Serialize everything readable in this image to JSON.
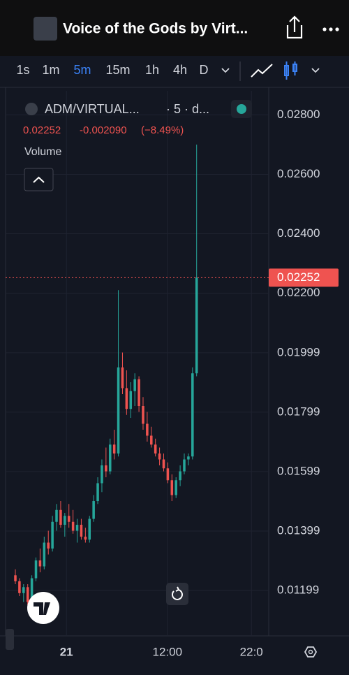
{
  "header": {
    "title": "Voice of the Gods by Virt..."
  },
  "toolbar": {
    "intervals": [
      "1s",
      "1m",
      "5m",
      "15m",
      "1h",
      "4h",
      "D"
    ],
    "active": 2,
    "active_color": "#3b82f6"
  },
  "chart": {
    "type": "candlestick",
    "symbol": "ADM/VIRTUAL...",
    "info": "· 5 · d...",
    "last": "0.02252",
    "change": "-0.002090",
    "change_pct": "(−8.49%)",
    "indicator": "Volume",
    "up_color": "#26a69a",
    "down_color": "#ef5350",
    "price_line": 0.02252,
    "ylim": [
      0.01046,
      0.02881
    ],
    "yticks": [
      {
        "value": 0.028,
        "label": "0.02800"
      },
      {
        "value": 0.026,
        "label": "0.02600"
      },
      {
        "value": 0.024,
        "label": "0.02400"
      },
      {
        "value": 0.022,
        "label": "0.02200"
      },
      {
        "value": 0.01999,
        "label": "0.01999"
      },
      {
        "value": 0.01799,
        "label": "0.01799"
      },
      {
        "value": 0.01599,
        "label": "0.01599"
      },
      {
        "value": 0.01399,
        "label": "0.01399"
      },
      {
        "value": 0.01199,
        "label": "0.01199"
      }
    ],
    "xlim": [
      0,
      61.5
    ],
    "xticks": [
      {
        "value": 12.4,
        "label": "21"
      },
      {
        "value": 36.9,
        "label": "12:00"
      },
      {
        "value": 57.3,
        "label": "22:0"
      }
    ],
    "candles": [
      [
        0.0125,
        0.0127,
        0.0122,
        0.0123
      ],
      [
        0.0123,
        0.0124,
        0.0118,
        0.0119
      ],
      [
        0.0119,
        0.0122,
        0.0116,
        0.0121
      ],
      [
        0.0121,
        0.0122,
        0.0115,
        0.0116
      ],
      [
        0.0116,
        0.0125,
        0.0115,
        0.0124
      ],
      [
        0.0124,
        0.0131,
        0.0123,
        0.013
      ],
      [
        0.013,
        0.0134,
        0.0126,
        0.0128
      ],
      [
        0.0128,
        0.0138,
        0.0127,
        0.0136
      ],
      [
        0.0136,
        0.014,
        0.0132,
        0.0134
      ],
      [
        0.0134,
        0.0145,
        0.0133,
        0.0143
      ],
      [
        0.0143,
        0.0149,
        0.014,
        0.0147
      ],
      [
        0.0147,
        0.015,
        0.0141,
        0.0142
      ],
      [
        0.0142,
        0.0146,
        0.0138,
        0.0145
      ],
      [
        0.0145,
        0.0149,
        0.0141,
        0.0143
      ],
      [
        0.0143,
        0.0147,
        0.0139,
        0.014
      ],
      [
        0.014,
        0.0144,
        0.0136,
        0.0142
      ],
      [
        0.0142,
        0.0144,
        0.0137,
        0.0138
      ],
      [
        0.0138,
        0.0141,
        0.0136,
        0.0137
      ],
      [
        0.0137,
        0.0145,
        0.0136,
        0.0144
      ],
      [
        0.0144,
        0.0152,
        0.0143,
        0.015
      ],
      [
        0.015,
        0.0158,
        0.0149,
        0.0156
      ],
      [
        0.0156,
        0.0164,
        0.0153,
        0.0162
      ],
      [
        0.0162,
        0.0168,
        0.0158,
        0.016
      ],
      [
        0.016,
        0.0171,
        0.0159,
        0.0169
      ],
      [
        0.0169,
        0.0174,
        0.0164,
        0.0166
      ],
      [
        0.0166,
        0.0221,
        0.0165,
        0.0195
      ],
      [
        0.0195,
        0.02,
        0.0186,
        0.0188
      ],
      [
        0.0188,
        0.0194,
        0.0179,
        0.0181
      ],
      [
        0.0181,
        0.019,
        0.0178,
        0.0187
      ],
      [
        0.0187,
        0.0193,
        0.0182,
        0.0191
      ],
      [
        0.0191,
        0.0192,
        0.018,
        0.0182
      ],
      [
        0.0182,
        0.0185,
        0.0174,
        0.0176
      ],
      [
        0.0176,
        0.018,
        0.017,
        0.0172
      ],
      [
        0.0172,
        0.0175,
        0.0168,
        0.0169
      ],
      [
        0.0169,
        0.0171,
        0.0165,
        0.0166
      ],
      [
        0.0166,
        0.0168,
        0.0162,
        0.0164
      ],
      [
        0.0164,
        0.0166,
        0.016,
        0.0161
      ],
      [
        0.0161,
        0.0163,
        0.0156,
        0.0157
      ],
      [
        0.0157,
        0.0159,
        0.015,
        0.0152
      ],
      [
        0.0152,
        0.0158,
        0.0151,
        0.0157
      ],
      [
        0.0157,
        0.0162,
        0.0155,
        0.016
      ],
      [
        0.016,
        0.0166,
        0.0159,
        0.0164
      ],
      [
        0.0164,
        0.0166,
        0.0162,
        0.0165
      ],
      [
        0.0165,
        0.0195,
        0.0164,
        0.0193
      ],
      [
        0.0193,
        0.027,
        0.0192,
        0.02252
      ]
    ]
  }
}
